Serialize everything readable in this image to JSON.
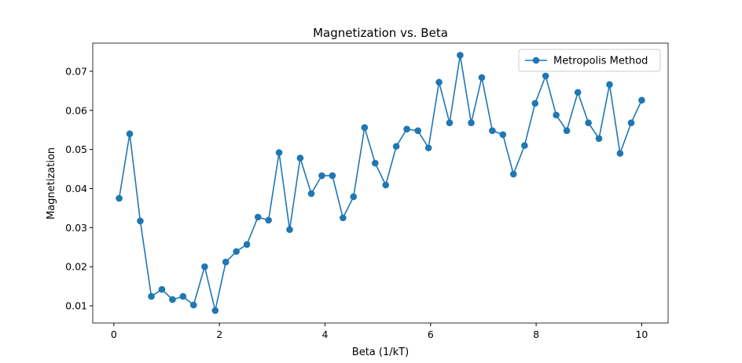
{
  "chart_data": {
    "type": "line",
    "title": "Magnetization vs. Beta",
    "xlabel": "Beta (1/kT)",
    "ylabel": "Magnetization",
    "x": [
      0.1,
      0.3,
      0.5,
      0.71,
      0.91,
      1.11,
      1.31,
      1.51,
      1.72,
      1.92,
      2.12,
      2.32,
      2.52,
      2.73,
      2.93,
      3.13,
      3.33,
      3.53,
      3.74,
      3.94,
      4.14,
      4.34,
      4.54,
      4.75,
      4.95,
      5.15,
      5.35,
      5.55,
      5.76,
      5.96,
      6.16,
      6.36,
      6.56,
      6.77,
      6.97,
      7.17,
      7.37,
      7.57,
      7.78,
      7.98,
      8.18,
      8.38,
      8.58,
      8.79,
      8.99,
      9.19,
      9.39,
      9.59,
      9.8,
      10.0
    ],
    "series": [
      {
        "name": "Metropolis Method",
        "color": "#1f77b4",
        "values": [
          0.0375,
          0.054,
          0.0317,
          0.0124,
          0.0142,
          0.0116,
          0.0124,
          0.0102,
          0.02,
          0.0088,
          0.0212,
          0.0239,
          0.0257,
          0.0327,
          0.0319,
          0.0492,
          0.0295,
          0.0478,
          0.0387,
          0.0433,
          0.0433,
          0.0325,
          0.0379,
          0.0556,
          0.0465,
          0.0409,
          0.0508,
          0.0552,
          0.0548,
          0.0504,
          0.0672,
          0.0568,
          0.0741,
          0.0568,
          0.0684,
          0.0548,
          0.0538,
          0.0437,
          0.051,
          0.0618,
          0.0688,
          0.0588,
          0.0548,
          0.0646,
          0.0568,
          0.0528,
          0.0666,
          0.049,
          0.0568,
          0.0626
        ]
      }
    ],
    "xlim": [
      -0.4,
      10.5
    ],
    "ylim": [
      0.0056,
      0.0772
    ],
    "xticks": [
      0,
      2,
      4,
      6,
      8,
      10
    ],
    "yticks": [
      0.01,
      0.02,
      0.03,
      0.04,
      0.05,
      0.06,
      0.07
    ],
    "legend": "upper right",
    "grid": false
  }
}
